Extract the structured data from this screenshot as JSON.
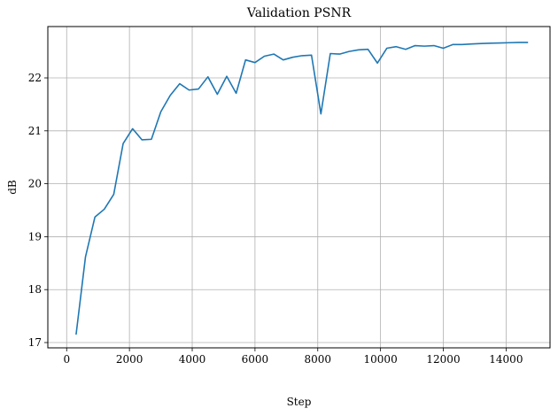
{
  "chart_data": {
    "type": "line",
    "title": "Validation PSNR",
    "xlabel": "Step",
    "ylabel": "dB",
    "xlim": [
      -600,
      15400
    ],
    "ylim": [
      16.9,
      22.97
    ],
    "xticks": [
      0,
      2000,
      4000,
      6000,
      8000,
      10000,
      12000,
      14000
    ],
    "yticks": [
      17,
      18,
      19,
      20,
      21,
      22
    ],
    "grid": true,
    "colors": {
      "series": "#1f77b4",
      "grid": "#b0b0b0",
      "axis": "#000000"
    },
    "series": [
      {
        "x": [
          300,
          600,
          900,
          1200,
          1500,
          1800,
          2100,
          2400,
          2700,
          3000,
          3300,
          3600,
          3900,
          4200,
          4500,
          4800,
          5100,
          5400,
          5700,
          6000,
          6300,
          6600,
          6900,
          7200,
          7500,
          7800,
          8100,
          8400,
          8700,
          9000,
          9300,
          9600,
          9900,
          10200,
          10500,
          10800,
          11100,
          11400,
          11700,
          12000,
          12300,
          12600,
          12900,
          13200,
          13500,
          13800,
          14100,
          14400,
          14700
        ],
        "y": [
          17.15,
          18.62,
          19.37,
          19.52,
          19.8,
          20.76,
          21.04,
          20.83,
          20.84,
          21.36,
          21.67,
          21.89,
          21.77,
          21.79,
          22.02,
          21.69,
          22.03,
          21.71,
          22.34,
          22.29,
          22.41,
          22.45,
          22.34,
          22.39,
          22.42,
          22.43,
          21.32,
          22.46,
          22.45,
          22.5,
          22.53,
          22.54,
          22.28,
          22.56,
          22.59,
          22.54,
          22.61,
          22.6,
          22.61,
          22.56,
          22.63,
          22.63,
          22.64,
          22.65,
          22.655,
          22.66,
          22.665,
          22.67,
          22.67
        ]
      }
    ]
  }
}
